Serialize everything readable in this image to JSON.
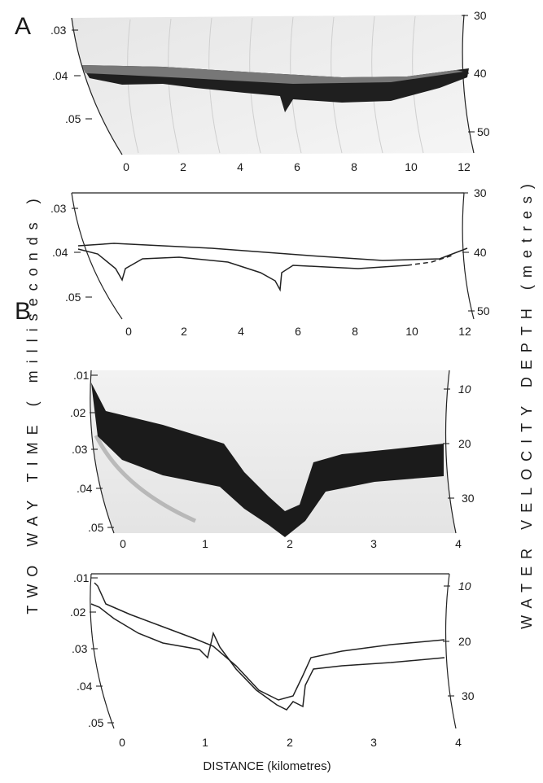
{
  "figure": {
    "left_axis_title": "TWO WAY TIME  ( milliseconds )",
    "right_axis_title": "WATER VELOCITY DEPTH  (metres)",
    "bottom_axis_title": "DISTANCE (kilometres)"
  },
  "panels": [
    {
      "id": "A",
      "label": "A",
      "left_ticks": [
        ".03",
        ".04",
        ".05"
      ],
      "right_ticks": [
        "30",
        "40",
        "50"
      ],
      "distance_ticks": [
        "0",
        "2",
        "4",
        "6",
        "8",
        "10",
        "12"
      ]
    },
    {
      "id": "B",
      "label": "B",
      "left_ticks": [
        ".01",
        ".02",
        ".03",
        ".04",
        ".05"
      ],
      "right_ticks": [
        "10",
        "20",
        "30"
      ],
      "distance_ticks": [
        "0",
        "1",
        "2",
        "3",
        "4"
      ]
    }
  ],
  "colors": {
    "ink": "#222222",
    "sonar_dark": "#1b1b1b",
    "sonar_background": "#eeeeee"
  }
}
